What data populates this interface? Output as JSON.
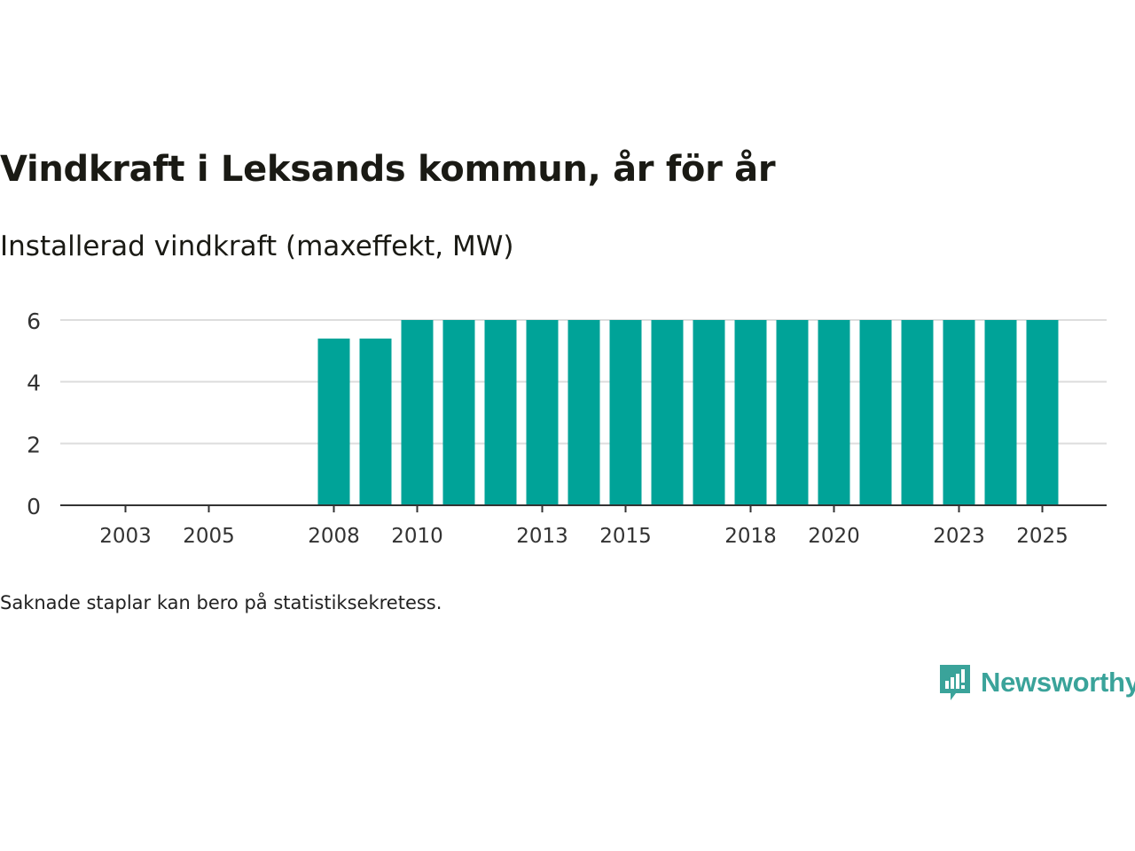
{
  "chart_data": {
    "type": "bar",
    "title": "Vindkraft i Leksands kommun, år för år",
    "subtitle": "Installerad vindkraft (maxeffekt, MW)",
    "categories": [
      "2003",
      "2004",
      "2005",
      "2006",
      "2007",
      "2008",
      "2009",
      "2010",
      "2011",
      "2012",
      "2013",
      "2014",
      "2015",
      "2016",
      "2017",
      "2018",
      "2019",
      "2020",
      "2021",
      "2022",
      "2023",
      "2024",
      "2025"
    ],
    "values": [
      0,
      0,
      0,
      0,
      0,
      5.4,
      5.4,
      6,
      6,
      6,
      6,
      6,
      6,
      6,
      6,
      6,
      6,
      6,
      6,
      6,
      6,
      6,
      6
    ],
    "x_tick_labels": [
      "2003",
      "2005",
      "2008",
      "2010",
      "2013",
      "2015",
      "2018",
      "2020",
      "2023",
      "2025"
    ],
    "y_ticks": [
      0,
      2,
      4,
      6
    ],
    "ylim": [
      0,
      6
    ],
    "grid": true,
    "xlabel": "",
    "ylabel": "",
    "bar_color": "#00a398"
  },
  "footnote": "Saknade staplar kan bero på statistiksekretess.",
  "brand": {
    "name": "Newsworthy",
    "color": "#3aa39a"
  }
}
